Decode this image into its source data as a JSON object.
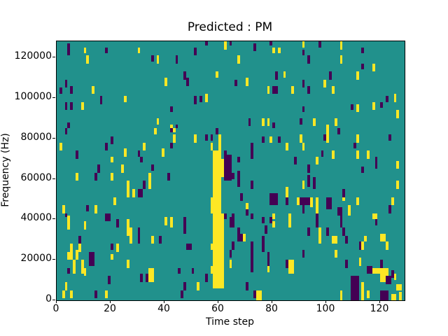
{
  "title": "Predicted : PM",
  "xlabel": "Time step",
  "ylabel": "Frequency (Hz)",
  "colors": {
    "background": "#ffffff",
    "low": "#440154",
    "mid": "#21918c",
    "high": "#fde725",
    "axis": "#000000"
  },
  "chart_data": {
    "type": "heatmap",
    "title": "Predicted : PM",
    "xlabel": "Time step",
    "ylabel": "Frequency (Hz)",
    "x_range": [
      0,
      129
    ],
    "y_range": [
      0,
      128000
    ],
    "grid": {
      "cols": 129,
      "rows": 128
    },
    "x_ticks": [
      0,
      20,
      40,
      60,
      80,
      100,
      120
    ],
    "y_ticks": [
      0,
      20000,
      40000,
      60000,
      80000,
      100000,
      120000
    ],
    "legend": "none",
    "background_value": "mid",
    "band_segments": [
      [
        60,
        46,
        8,
        1
      ],
      [
        58,
        54,
        4,
        3
      ],
      [
        58,
        58,
        9,
        4
      ],
      [
        58,
        67,
        10,
        3
      ],
      [
        57,
        77,
        8,
        4
      ],
      [
        58,
        85,
        7,
        4
      ],
      [
        58,
        92,
        8,
        4
      ],
      [
        57,
        100,
        3,
        5
      ],
      [
        58,
        103,
        8,
        4
      ],
      [
        57,
        111,
        4,
        5
      ],
      [
        58,
        115,
        7,
        4
      ]
    ],
    "yellow_cells": [
      [
        10,
        3,
        3
      ],
      [
        11,
        7,
        4
      ],
      [
        30,
        3,
        3
      ],
      [
        37,
        7,
        4
      ],
      [
        40,
        18,
        4
      ],
      [
        13,
        22,
        4
      ],
      [
        25,
        27,
        3
      ],
      [
        9,
        30,
        4
      ],
      [
        37,
        38,
        3
      ],
      [
        62,
        0,
        4
      ],
      [
        80,
        3,
        3
      ],
      [
        82,
        3,
        3
      ],
      [
        67,
        7,
        4
      ],
      [
        59,
        15,
        3
      ],
      [
        70,
        18,
        4
      ],
      [
        84,
        15,
        3
      ],
      [
        78,
        22,
        4
      ],
      [
        55,
        26,
        4
      ],
      [
        76,
        38,
        4
      ],
      [
        78,
        38,
        4
      ],
      [
        42,
        41,
        2
      ],
      [
        91,
        0,
        3
      ],
      [
        105,
        0,
        4
      ],
      [
        105,
        7,
        4
      ],
      [
        117,
        11,
        4
      ],
      [
        111,
        15,
        4
      ],
      [
        99,
        19,
        4
      ],
      [
        87,
        22,
        4
      ],
      [
        102,
        22,
        4
      ],
      [
        125,
        26,
        4
      ],
      [
        111,
        31,
        4
      ],
      [
        117,
        30,
        4
      ],
      [
        126,
        34,
        4
      ],
      [
        95,
        38,
        4
      ],
      [
        103,
        38,
        4
      ],
      [
        100,
        41,
        2
      ],
      [
        36,
        43,
        3
      ],
      [
        1,
        50,
        4
      ],
      [
        32,
        50,
        4
      ],
      [
        25,
        53,
        4
      ],
      [
        39,
        53,
        4
      ],
      [
        20,
        57,
        3
      ],
      [
        24,
        61,
        4
      ],
      [
        7,
        65,
        4
      ],
      [
        20,
        65,
        4
      ],
      [
        34,
        65,
        8
      ],
      [
        26,
        69,
        8
      ],
      [
        28,
        73,
        4
      ],
      [
        21,
        77,
        4
      ],
      [
        2,
        81,
        4
      ],
      [
        14,
        81,
        4
      ],
      [
        43,
        43,
        2
      ],
      [
        43,
        46,
        4
      ],
      [
        51,
        46,
        4
      ],
      [
        57,
        50,
        4
      ],
      [
        85,
        50,
        4
      ],
      [
        79,
        47,
        3
      ],
      [
        70,
        80,
        4
      ],
      [
        100,
        43,
        3
      ],
      [
        90,
        46,
        4
      ],
      [
        100,
        46,
        4
      ],
      [
        111,
        46,
        4
      ],
      [
        91,
        50,
        4
      ],
      [
        111,
        54,
        4
      ],
      [
        115,
        54,
        4
      ],
      [
        102,
        54,
        4
      ],
      [
        96,
        57,
        4
      ],
      [
        126,
        59,
        4
      ],
      [
        91,
        69,
        4
      ],
      [
        126,
        69,
        4
      ],
      [
        85,
        72,
        5
      ],
      [
        106,
        75,
        4
      ],
      [
        89,
        77,
        4
      ],
      [
        94,
        77,
        5
      ],
      [
        96,
        77,
        4
      ],
      [
        111,
        77,
        4
      ],
      [
        96,
        81,
        5
      ],
      [
        108,
        81,
        5
      ],
      [
        124,
        77,
        4
      ],
      [
        4,
        86,
        7
      ],
      [
        10,
        89,
        4
      ],
      [
        26,
        88,
        8
      ],
      [
        27,
        92,
        8
      ],
      [
        35,
        96,
        4
      ],
      [
        40,
        87,
        4
      ],
      [
        8,
        100,
        4
      ],
      [
        5,
        100,
        8
      ],
      [
        7,
        103,
        5
      ],
      [
        4,
        104,
        4
      ],
      [
        6,
        108,
        7
      ],
      [
        9,
        108,
        7
      ],
      [
        10,
        112,
        4
      ],
      [
        20,
        105,
        3
      ],
      [
        22,
        100,
        4
      ],
      [
        26,
        108,
        4
      ],
      [
        34,
        112,
        7,
        2
      ],
      [
        3,
        119,
        4
      ],
      [
        5,
        123,
        4
      ],
      [
        2,
        123,
        4
      ],
      [
        18,
        123,
        4
      ],
      [
        69,
        95,
        4
      ],
      [
        64,
        108,
        4
      ],
      [
        78,
        111,
        3
      ],
      [
        74,
        123,
        5,
        2
      ],
      [
        80,
        85,
        3
      ],
      [
        80,
        89,
        3
      ],
      [
        42,
        87,
        5
      ],
      [
        52,
        119,
        4
      ],
      [
        86,
        85,
        7
      ],
      [
        117,
        85,
        3,
        2
      ],
      [
        97,
        92,
        8
      ],
      [
        102,
        96,
        4,
        2
      ],
      [
        114,
        96,
        3
      ],
      [
        120,
        95,
        4,
        2
      ],
      [
        113,
        99,
        4
      ],
      [
        122,
        99,
        4
      ],
      [
        103,
        103,
        4
      ],
      [
        86,
        108,
        7,
        2
      ],
      [
        112,
        107,
        4
      ],
      [
        117,
        112,
        3,
        3
      ],
      [
        120,
        112,
        7,
        3
      ],
      [
        125,
        115,
        3
      ],
      [
        113,
        119,
        9
      ],
      [
        105,
        123,
        5
      ],
      [
        115,
        123,
        4
      ],
      [
        124,
        125,
        3,
        2
      ],
      [
        126,
        120,
        3,
        2
      ],
      [
        127,
        124,
        4
      ]
    ],
    "purple_cells": [
      [
        4,
        1,
        6
      ],
      [
        18,
        3,
        3
      ],
      [
        35,
        7,
        3
      ],
      [
        3,
        19,
        4
      ],
      [
        1,
        23,
        3
      ],
      [
        5,
        22,
        4
      ],
      [
        16,
        27,
        4
      ],
      [
        3,
        30,
        4
      ],
      [
        5,
        30,
        4
      ],
      [
        42,
        32,
        3
      ],
      [
        4,
        40,
        3
      ],
      [
        55,
        0,
        2
      ],
      [
        64,
        0,
        2
      ],
      [
        73,
        1,
        4
      ],
      [
        79,
        0,
        2
      ],
      [
        51,
        3,
        4
      ],
      [
        44,
        7,
        4
      ],
      [
        47,
        15,
        4
      ],
      [
        48,
        18,
        4
      ],
      [
        66,
        19,
        3
      ],
      [
        81,
        15,
        4
      ],
      [
        80,
        22,
        4,
        2
      ],
      [
        51,
        27,
        4
      ],
      [
        53,
        27,
        3
      ],
      [
        71,
        38,
        4
      ],
      [
        80,
        40,
        3
      ],
      [
        44,
        41,
        2
      ],
      [
        97,
        0,
        3
      ],
      [
        91,
        4,
        3
      ],
      [
        93,
        7,
        4
      ],
      [
        113,
        3,
        3
      ],
      [
        113,
        11,
        3
      ],
      [
        101,
        15,
        4
      ],
      [
        91,
        19,
        4
      ],
      [
        93,
        22,
        4
      ],
      [
        122,
        27,
        3
      ],
      [
        109,
        31,
        3
      ],
      [
        120,
        30,
        3
      ],
      [
        91,
        32,
        3
      ],
      [
        90,
        38,
        3
      ],
      [
        3,
        43,
        3
      ],
      [
        42,
        43,
        2
      ],
      [
        20,
        47,
        4
      ],
      [
        18,
        50,
        4
      ],
      [
        7,
        54,
        4
      ],
      [
        30,
        54,
        3
      ],
      [
        42,
        50,
        3
      ],
      [
        31,
        57,
        3
      ],
      [
        15,
        61,
        4
      ],
      [
        35,
        61,
        3
      ],
      [
        41,
        65,
        4
      ],
      [
        14,
        65,
        4
      ],
      [
        32,
        69,
        4
      ],
      [
        30,
        73,
        4,
        2
      ],
      [
        11,
        81,
        3
      ],
      [
        59,
        43,
        3
      ],
      [
        55,
        46,
        3
      ],
      [
        57,
        46,
        3
      ],
      [
        62,
        54,
        4
      ],
      [
        62,
        56,
        13,
        3
      ],
      [
        67,
        57,
        3
      ],
      [
        65,
        65,
        3
      ],
      [
        67,
        64,
        4
      ],
      [
        67,
        68,
        4
      ],
      [
        72,
        50,
        8
      ],
      [
        76,
        47,
        3
      ],
      [
        82,
        47,
        3
      ],
      [
        72,
        69,
        4
      ],
      [
        68,
        75,
        4
      ],
      [
        79,
        75,
        6,
        3
      ],
      [
        70,
        83,
        3
      ],
      [
        104,
        43,
        3
      ],
      [
        99,
        46,
        3
      ],
      [
        123,
        46,
        3
      ],
      [
        110,
        50,
        3
      ],
      [
        98,
        54,
        3
      ],
      [
        88,
        57,
        4
      ],
      [
        118,
        57,
        3
      ],
      [
        93,
        61,
        4
      ],
      [
        113,
        62,
        3
      ],
      [
        118,
        60,
        3
      ],
      [
        93,
        66,
        3
      ],
      [
        95,
        67,
        3
      ],
      [
        93,
        69,
        3
      ],
      [
        95,
        70,
        3
      ],
      [
        106,
        73,
        4
      ],
      [
        85,
        77,
        4
      ],
      [
        90,
        77,
        4,
        4
      ],
      [
        100,
        77,
        6,
        2
      ],
      [
        91,
        81,
        4
      ],
      [
        104,
        82,
        4,
        2
      ],
      [
        123,
        81,
        4
      ],
      [
        3,
        85,
        2
      ],
      [
        18,
        85,
        4,
        2
      ],
      [
        22,
        88,
        4
      ],
      [
        30,
        92,
        4
      ],
      [
        30,
        96,
        4
      ],
      [
        38,
        96,
        4
      ],
      [
        8,
        96,
        4
      ],
      [
        12,
        104,
        7,
        2
      ],
      [
        4,
        112,
        3
      ],
      [
        19,
        116,
        4
      ],
      [
        20,
        100,
        3
      ],
      [
        31,
        115,
        4
      ],
      [
        33,
        115,
        4
      ],
      [
        14,
        123,
        4
      ],
      [
        62,
        85,
        3
      ],
      [
        65,
        85,
        5
      ],
      [
        64,
        87,
        5,
        2
      ],
      [
        67,
        92,
        3
      ],
      [
        67,
        95,
        4,
        2
      ],
      [
        65,
        99,
        4
      ],
      [
        64,
        103,
        4
      ],
      [
        70,
        119,
        4
      ],
      [
        72,
        85,
        3
      ],
      [
        76,
        87,
        3
      ],
      [
        77,
        91,
        4
      ],
      [
        72,
        99,
        4
      ],
      [
        72,
        103,
        11
      ],
      [
        76,
        96,
        8
      ],
      [
        78,
        104,
        7
      ],
      [
        73,
        123,
        4
      ],
      [
        79,
        87,
        3
      ],
      [
        47,
        87,
        8
      ],
      [
        48,
        100,
        3,
        2
      ],
      [
        45,
        112,
        3
      ],
      [
        50,
        112,
        3
      ],
      [
        55,
        115,
        4
      ],
      [
        47,
        119,
        4
      ],
      [
        46,
        123,
        4
      ],
      [
        96,
        85,
        7
      ],
      [
        105,
        85,
        7
      ],
      [
        118,
        88,
        3
      ],
      [
        93,
        92,
        4
      ],
      [
        100,
        92,
        4
      ],
      [
        106,
        92,
        4
      ],
      [
        107,
        96,
        4
      ],
      [
        112,
        99,
        4
      ],
      [
        91,
        103,
        4
      ],
      [
        85,
        108,
        4
      ],
      [
        107,
        108,
        4
      ],
      [
        120,
        108,
        4
      ],
      [
        115,
        111,
        4,
        2
      ],
      [
        124,
        113,
        4
      ],
      [
        109,
        116,
        12,
        3
      ],
      [
        120,
        123,
        5,
        3
      ],
      [
        122,
        116,
        4,
        2
      ]
    ]
  }
}
